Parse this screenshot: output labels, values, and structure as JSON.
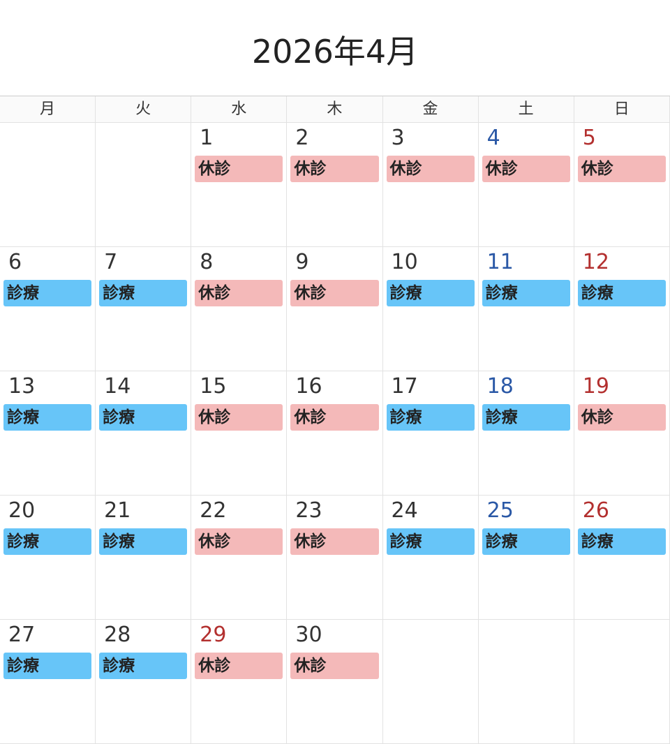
{
  "title": "2026年4月",
  "weekdays": [
    "月",
    "火",
    "水",
    "木",
    "金",
    "土",
    "日"
  ],
  "colors": {
    "closed": "#f4b9b9",
    "open": "#67c5f8",
    "saturday": "#2a58a6",
    "sunday_holiday": "#b3302f"
  },
  "labels": {
    "open": "診療",
    "closed": "休診"
  },
  "weeks": [
    [
      null,
      null,
      {
        "day": "1",
        "status": "closed"
      },
      {
        "day": "2",
        "status": "closed"
      },
      {
        "day": "3",
        "status": "closed"
      },
      {
        "day": "4",
        "status": "closed",
        "color": "sat"
      },
      {
        "day": "5",
        "status": "closed",
        "color": "sun"
      }
    ],
    [
      {
        "day": "6",
        "status": "open"
      },
      {
        "day": "7",
        "status": "open"
      },
      {
        "day": "8",
        "status": "closed"
      },
      {
        "day": "9",
        "status": "closed"
      },
      {
        "day": "10",
        "status": "open"
      },
      {
        "day": "11",
        "status": "open",
        "color": "sat"
      },
      {
        "day": "12",
        "status": "open",
        "color": "sun"
      }
    ],
    [
      {
        "day": "13",
        "status": "open"
      },
      {
        "day": "14",
        "status": "open"
      },
      {
        "day": "15",
        "status": "closed"
      },
      {
        "day": "16",
        "status": "closed"
      },
      {
        "day": "17",
        "status": "open"
      },
      {
        "day": "18",
        "status": "open",
        "color": "sat"
      },
      {
        "day": "19",
        "status": "closed",
        "color": "sun"
      }
    ],
    [
      {
        "day": "20",
        "status": "open"
      },
      {
        "day": "21",
        "status": "open"
      },
      {
        "day": "22",
        "status": "closed"
      },
      {
        "day": "23",
        "status": "closed"
      },
      {
        "day": "24",
        "status": "open"
      },
      {
        "day": "25",
        "status": "open",
        "color": "sat"
      },
      {
        "day": "26",
        "status": "open",
        "color": "sun"
      }
    ],
    [
      {
        "day": "27",
        "status": "open"
      },
      {
        "day": "28",
        "status": "open"
      },
      {
        "day": "29",
        "status": "closed",
        "color": "sun"
      },
      {
        "day": "30",
        "status": "closed"
      },
      null,
      null,
      null
    ]
  ]
}
